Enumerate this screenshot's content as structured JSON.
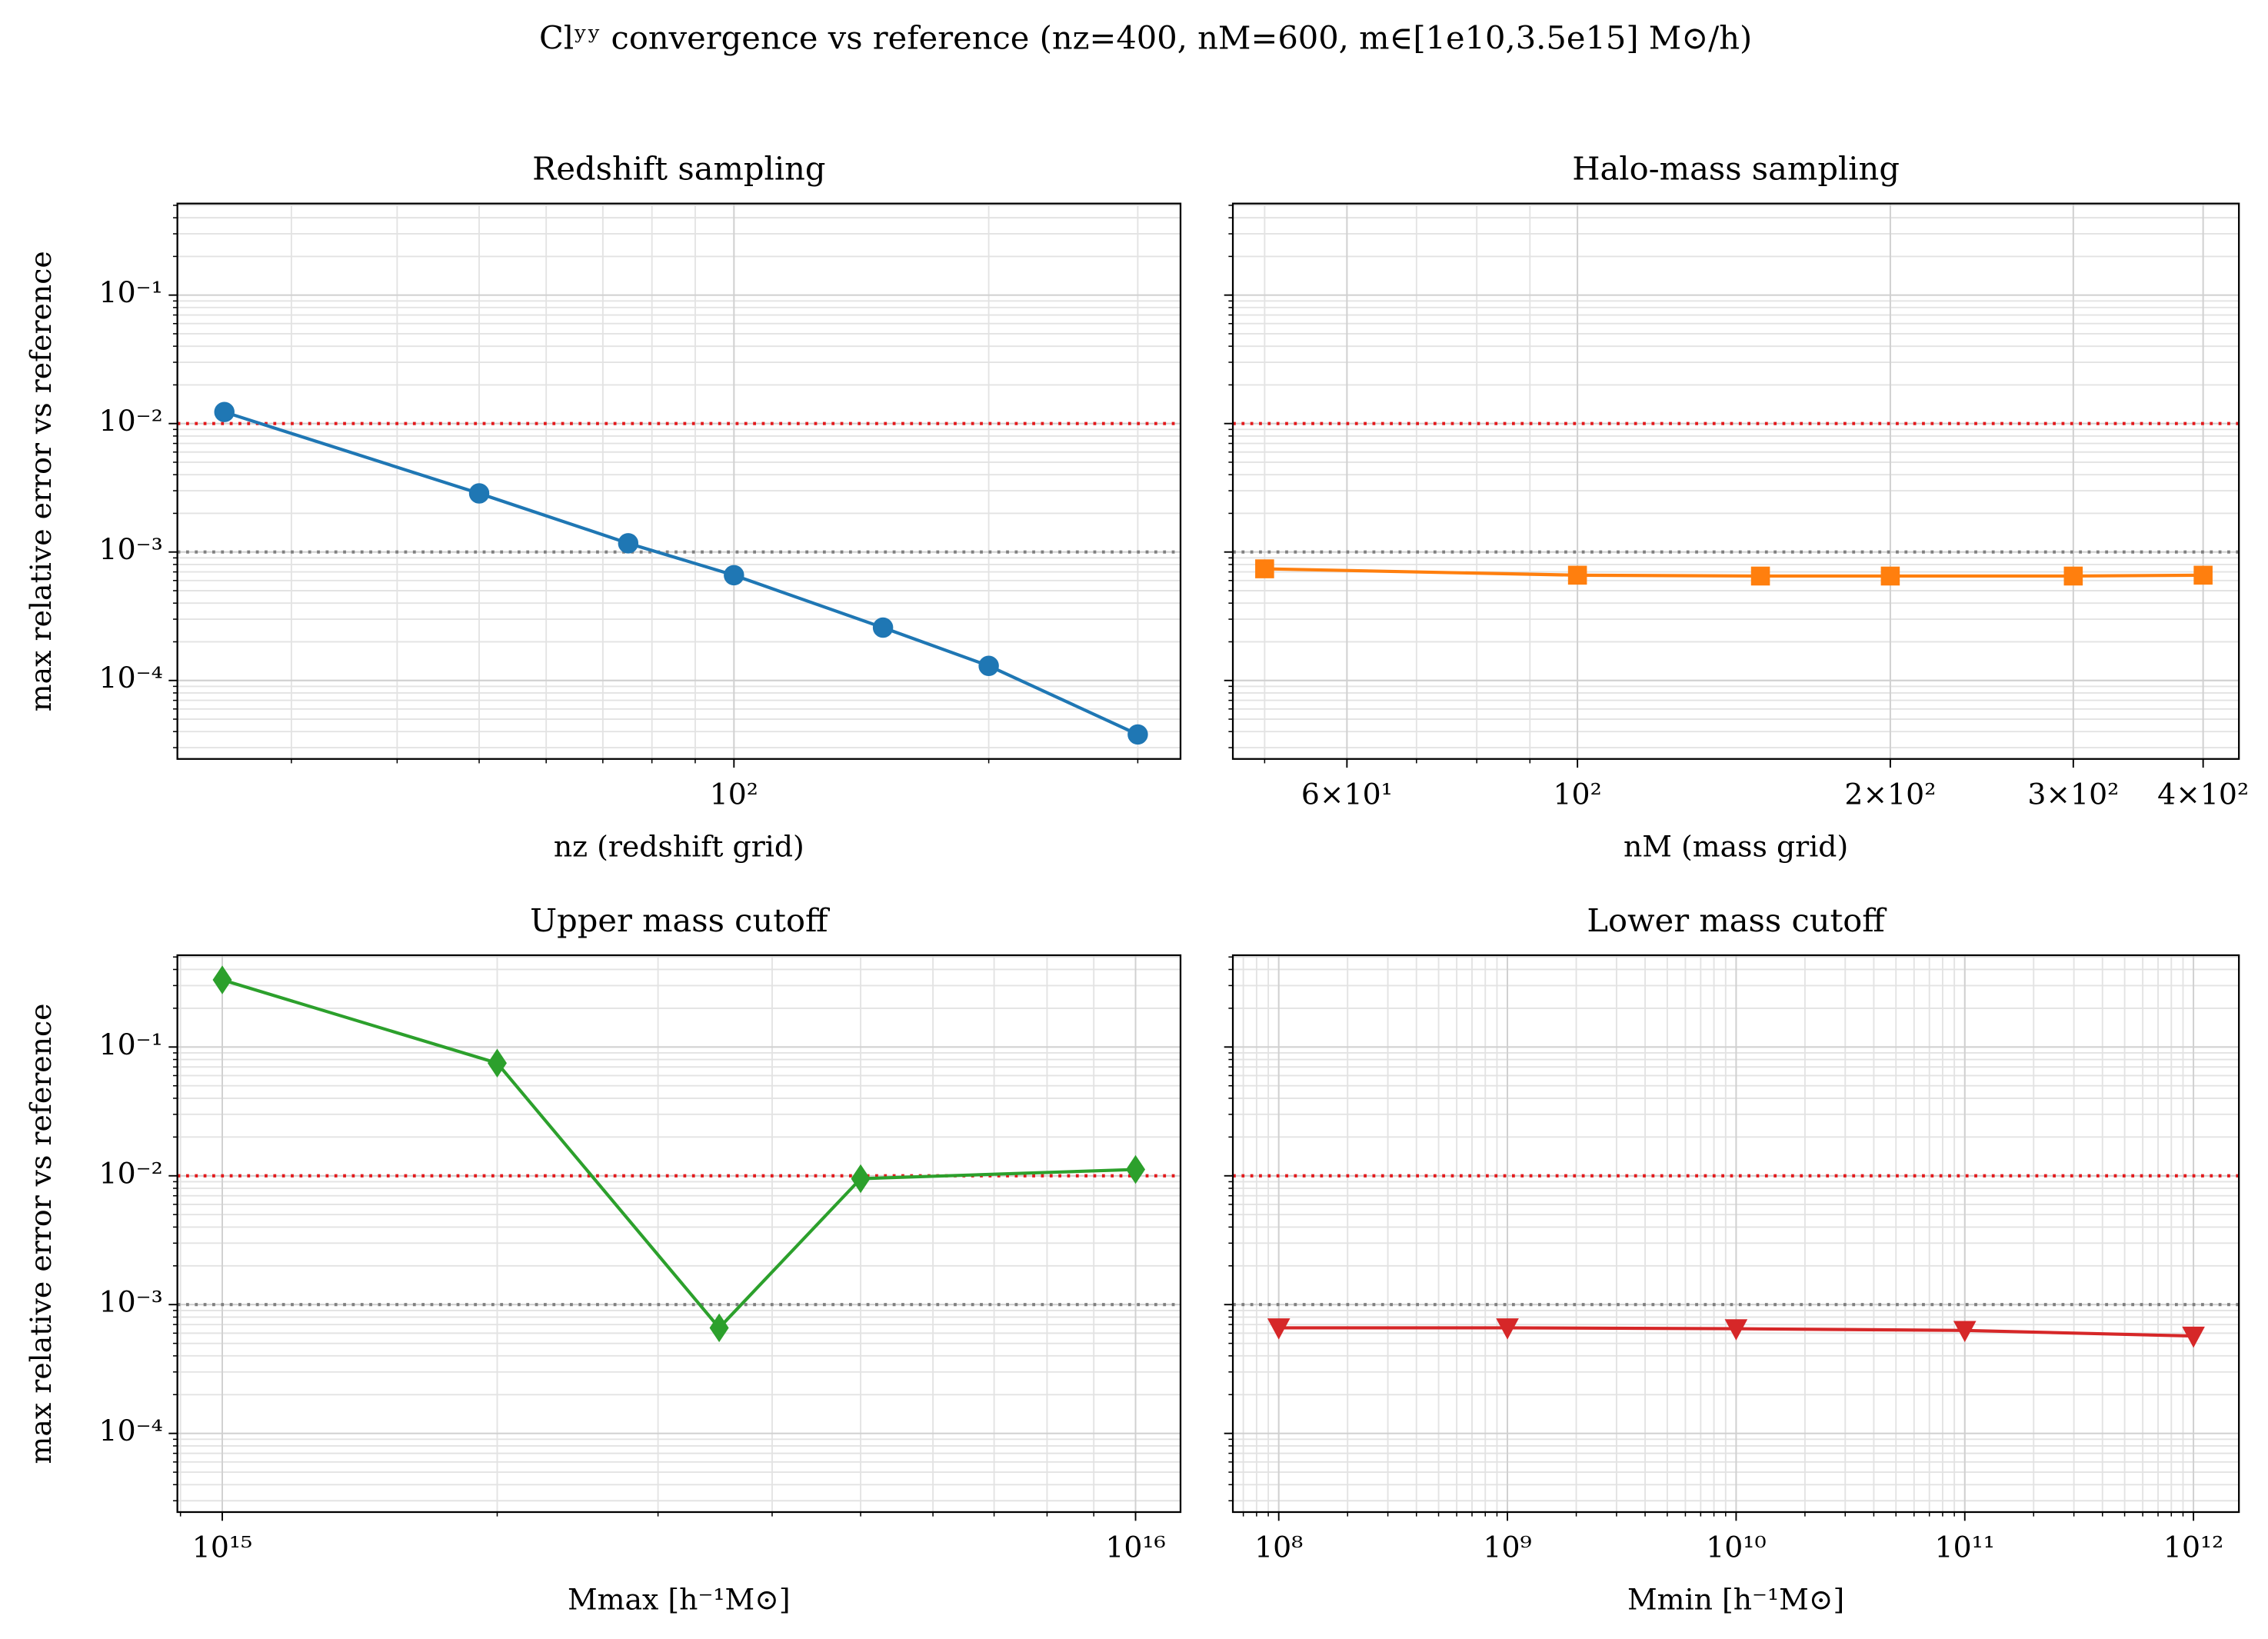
{
  "title": "Clʸʸ convergence vs reference (nz=400, nM=600, m∈[1e10,3.5e15] M⊙/h)",
  "chart_data": [
    {
      "type": "line",
      "title": "Redshift sampling",
      "xlabel": "nz (redshift grid)",
      "ylabel": "max relative error vs reference",
      "x": [
        25,
        50,
        75,
        100,
        150,
        200,
        300
      ],
      "series": [
        {
          "color": "#1f77b4",
          "marker": "circle",
          "values": [
            0.0123,
            0.00286,
            0.00117,
            0.00066,
            0.000258,
            0.00013,
            3.8e-05
          ]
        }
      ],
      "xlim": [
        22,
        337
      ],
      "ylim": [
        2.45e-05,
        0.516
      ],
      "xscale": "log",
      "yscale": "log",
      "grid": true,
      "minor_grid": true,
      "xticks": [
        {
          "value": 100,
          "label": "10²"
        }
      ],
      "yticks": [
        {
          "value": 0.0001,
          "label": "10⁻⁴"
        },
        {
          "value": 0.001,
          "label": "10⁻³"
        },
        {
          "value": 0.01,
          "label": "10⁻²"
        },
        {
          "value": 0.1,
          "label": "10⁻¹"
        }
      ],
      "reference_lines": [
        {
          "value": 0.01,
          "color": "#e31a1c"
        },
        {
          "value": 0.001,
          "color": "#808080"
        }
      ]
    },
    {
      "type": "line",
      "title": "Halo-mass sampling",
      "xlabel": "nM (mass grid)",
      "x": [
        50,
        100,
        150,
        200,
        300,
        400
      ],
      "series": [
        {
          "color": "#ff7f0e",
          "marker": "square",
          "values": [
            0.00074,
            0.00066,
            0.00065,
            0.00065,
            0.00065,
            0.00066
          ]
        }
      ],
      "xlim": [
        46.6,
        433
      ],
      "ylim": [
        2.45e-05,
        0.516
      ],
      "xscale": "log",
      "yscale": "log",
      "grid": true,
      "minor_grid": true,
      "xticks": [
        {
          "value": 60,
          "label": "6×10¹"
        },
        {
          "value": 100,
          "label": "10²"
        },
        {
          "value": 200,
          "label": "2×10²"
        },
        {
          "value": 300,
          "label": "3×10²"
        },
        {
          "value": 400,
          "label": "4×10²"
        }
      ],
      "yticks": [
        0.0001,
        0.001,
        0.01,
        0.1
      ],
      "reference_lines": [
        {
          "value": 0.01,
          "color": "#e31a1c"
        },
        {
          "value": 0.001,
          "color": "#808080"
        }
      ]
    },
    {
      "type": "line",
      "title": "Upper mass cutoff",
      "xlabel": "Mmax [h⁻¹M⊙]",
      "ylabel": "max relative error vs reference",
      "x": [
        1000000000000000.0,
        2000000000000000.0,
        3500000000000000.0,
        5000000000000000.0,
        1e+16
      ],
      "series": [
        {
          "color": "#2ca02c",
          "marker": "diamond",
          "values": [
            0.332,
            0.075,
            0.00066,
            0.0095,
            0.0112
          ]
        }
      ],
      "xlim": [
        893000000000000.0,
        1.12e+16
      ],
      "ylim": [
        2.45e-05,
        0.516
      ],
      "xscale": "log",
      "yscale": "log",
      "grid": true,
      "minor_grid": true,
      "xticks": [
        {
          "value": 1000000000000000.0,
          "label": "10¹⁵"
        },
        {
          "value": 1e+16,
          "label": "10¹⁶"
        }
      ],
      "yticks": [
        {
          "value": 0.0001,
          "label": "10⁻⁴"
        },
        {
          "value": 0.001,
          "label": "10⁻³"
        },
        {
          "value": 0.01,
          "label": "10⁻²"
        },
        {
          "value": 0.1,
          "label": "10⁻¹"
        }
      ],
      "reference_lines": [
        {
          "value": 0.01,
          "color": "#e31a1c"
        },
        {
          "value": 0.001,
          "color": "#808080"
        }
      ]
    },
    {
      "type": "line",
      "title": "Lower mass cutoff",
      "xlabel": "Mmin [h⁻¹M⊙]",
      "x": [
        100000000.0,
        1000000000.0,
        10000000000.0,
        100000000000.0,
        1000000000000.0
      ],
      "series": [
        {
          "color": "#d62728",
          "marker": "triangle-down",
          "values": [
            0.00066,
            0.00066,
            0.00065,
            0.00063,
            0.00057
          ]
        }
      ],
      "xlim": [
        63000000.0,
        1580000000000.0
      ],
      "ylim": [
        2.45e-05,
        0.516
      ],
      "xscale": "log",
      "yscale": "log",
      "grid": true,
      "minor_grid": true,
      "xticks": [
        {
          "value": 100000000.0,
          "label": "10⁸"
        },
        {
          "value": 1000000000.0,
          "label": "10⁹"
        },
        {
          "value": 10000000000.0,
          "label": "10¹⁰"
        },
        {
          "value": 100000000000.0,
          "label": "10¹¹"
        },
        {
          "value": 1000000000000.0,
          "label": "10¹²"
        }
      ],
      "yticks": [
        0.0001,
        0.001,
        0.01,
        0.1
      ],
      "reference_lines": [
        {
          "value": 0.01,
          "color": "#e31a1c"
        },
        {
          "value": 0.001,
          "color": "#808080"
        }
      ]
    }
  ]
}
